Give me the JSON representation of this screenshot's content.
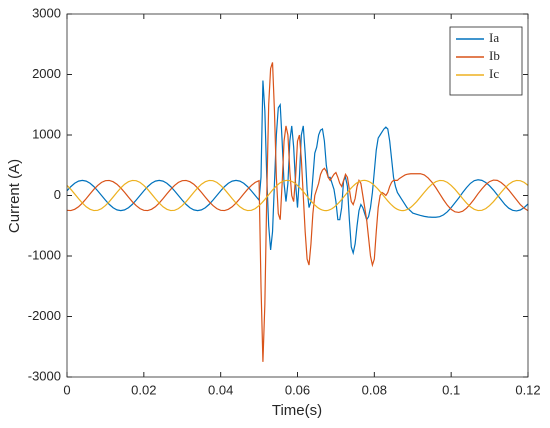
{
  "chart_data": {
    "type": "line",
    "x_label": "Time(s)",
    "y_label": "Current (A)",
    "xlim": [
      0,
      0.12
    ],
    "xticks": [
      0,
      0.02,
      0.04,
      0.06,
      0.08,
      0.1,
      0.12
    ],
    "ylim": [
      -3000,
      3000
    ],
    "yticks": [
      -3000,
      -2000,
      -1000,
      0,
      1000,
      2000,
      3000
    ],
    "legend": "top-right",
    "x": [
      0,
      0.001,
      0.002,
      0.003,
      0.004,
      0.005,
      0.006,
      0.007,
      0.008,
      0.009,
      0.01,
      0.011,
      0.012,
      0.013,
      0.014,
      0.015,
      0.016,
      0.017,
      0.018,
      0.019,
      0.02,
      0.021,
      0.022,
      0.023,
      0.024,
      0.025,
      0.026,
      0.027,
      0.028,
      0.029,
      0.03,
      0.031,
      0.032,
      0.033,
      0.034,
      0.035,
      0.036,
      0.037,
      0.038,
      0.039,
      0.04,
      0.041,
      0.042,
      0.043,
      0.044,
      0.045,
      0.046,
      0.047,
      0.048,
      0.049,
      0.05,
      0.0505,
      0.051,
      0.0515,
      0.052,
      0.0525,
      0.053,
      0.0535,
      0.054,
      0.0545,
      0.055,
      0.0555,
      0.056,
      0.0565,
      0.057,
      0.0575,
      0.058,
      0.0585,
      0.059,
      0.0595,
      0.06,
      0.0605,
      0.061,
      0.0615,
      0.062,
      0.0625,
      0.063,
      0.0635,
      0.064,
      0.0645,
      0.065,
      0.0655,
      0.066,
      0.0665,
      0.067,
      0.0675,
      0.068,
      0.0685,
      0.069,
      0.0695,
      0.07,
      0.0705,
      0.071,
      0.0715,
      0.072,
      0.0725,
      0.073,
      0.0735,
      0.074,
      0.0745,
      0.075,
      0.0755,
      0.076,
      0.0765,
      0.077,
      0.0775,
      0.078,
      0.0785,
      0.079,
      0.0795,
      0.08,
      0.0805,
      0.081,
      0.0815,
      0.082,
      0.0825,
      0.083,
      0.0835,
      0.084,
      0.0845,
      0.085,
      0.0855,
      0.086,
      0.0865,
      0.087,
      0.0875,
      0.088,
      0.0885,
      0.089,
      0.0895,
      0.09,
      0.091,
      0.092,
      0.093,
      0.094,
      0.095,
      0.096,
      0.097,
      0.098,
      0.099,
      0.1,
      0.101,
      0.102,
      0.103,
      0.104,
      0.105,
      0.106,
      0.107,
      0.108,
      0.109,
      0.11,
      0.111,
      0.112,
      0.113,
      0.114,
      0.115,
      0.116,
      0.117,
      0.118,
      0.119,
      0.12
    ],
    "series": [
      {
        "name": "Ia",
        "color": "#0072bd",
        "values": [
          77,
          147,
          202,
          238,
          250,
          238,
          202,
          147,
          77,
          0,
          -77,
          -147,
          -202,
          -238,
          -250,
          -238,
          -202,
          -147,
          -77,
          0,
          77,
          147,
          202,
          238,
          250,
          238,
          202,
          147,
          77,
          0,
          -77,
          -147,
          -202,
          -238,
          -250,
          -238,
          -202,
          -147,
          -77,
          0,
          77,
          147,
          202,
          238,
          250,
          238,
          202,
          147,
          77,
          0,
          -77,
          300,
          1900,
          1400,
          300,
          -500,
          -900,
          -600,
          200,
          1000,
          1450,
          1500,
          900,
          200,
          -100,
          200,
          900,
          1150,
          800,
          200,
          -200,
          300,
          1000,
          1150,
          700,
          100,
          -200,
          -100,
          300,
          700,
          800,
          1000,
          1080,
          1100,
          900,
          500,
          300,
          300,
          200,
          100,
          -100,
          -400,
          -400,
          -200,
          250,
          300,
          150,
          -400,
          -850,
          -950,
          -800,
          -500,
          -250,
          -150,
          -200,
          -300,
          -400,
          -350,
          -200,
          50,
          400,
          750,
          950,
          1000,
          1050,
          1100,
          1130,
          1100,
          900,
          600,
          300,
          150,
          50,
          0,
          -50,
          -100,
          -150,
          -200,
          -230,
          -260,
          -290,
          -310,
          -330,
          -345,
          -355,
          -360,
          -360,
          -350,
          -320,
          -270,
          -200,
          -120,
          -40,
          50,
          130,
          200,
          245,
          260,
          250,
          215,
          160,
          90,
          10,
          -70,
          -150,
          -210,
          -245,
          -255,
          -240,
          -200,
          -140
        ]
      },
      {
        "name": "Ib",
        "color": "#d95319",
        "values": [
          -245,
          -249,
          -228,
          -186,
          -125,
          -52,
          26,
          102,
          167,
          217,
          245,
          249,
          228,
          186,
          125,
          52,
          -26,
          -102,
          -167,
          -217,
          -245,
          -249,
          -228,
          -186,
          -125,
          -52,
          26,
          102,
          167,
          217,
          245,
          249,
          228,
          186,
          125,
          52,
          -26,
          -102,
          -167,
          -217,
          -245,
          -249,
          -228,
          -186,
          -125,
          -52,
          26,
          102,
          167,
          217,
          245,
          -1500,
          -2750,
          -1800,
          0,
          1500,
          2100,
          2200,
          1400,
          300,
          -300,
          -400,
          200,
          900,
          1150,
          1000,
          400,
          0,
          -100,
          300,
          900,
          1000,
          600,
          0,
          -600,
          -1050,
          -1150,
          -800,
          -300,
          0,
          100,
          200,
          350,
          420,
          450,
          400,
          300,
          250,
          300,
          350,
          380,
          300,
          200,
          150,
          250,
          350,
          300,
          100,
          -100,
          -150,
          -50,
          150,
          250,
          200,
          0,
          -200,
          -400,
          -700,
          -1000,
          -1150,
          -1050,
          -600,
          -200,
          0,
          50,
          30,
          0,
          50,
          150,
          220,
          250,
          250,
          250,
          280,
          300,
          320,
          340,
          350,
          355,
          360,
          360,
          360,
          360,
          340,
          290,
          220,
          130,
          30,
          -70,
          -160,
          -230,
          -270,
          -280,
          -260,
          -210,
          -140,
          -60,
          30,
          110,
          180,
          230,
          255,
          250,
          215,
          160,
          90,
          10,
          -70,
          -150,
          -210,
          -250
        ]
      },
      {
        "name": "Ic",
        "color": "#edb120",
        "values": [
          167,
          102,
          26,
          -52,
          -125,
          -186,
          -228,
          -249,
          -245,
          -217,
          -167,
          -102,
          -26,
          52,
          125,
          186,
          228,
          249,
          245,
          217,
          167,
          102,
          26,
          -52,
          -125,
          -186,
          -228,
          -249,
          -245,
          -217,
          -167,
          -102,
          -26,
          52,
          125,
          186,
          228,
          249,
          245,
          217,
          167,
          102,
          26,
          -52,
          -125,
          -186,
          -228,
          -249,
          -245,
          -217,
          -167,
          -136,
          -102,
          -65,
          -26,
          13,
          52,
          90,
          125,
          157,
          186,
          210,
          228,
          241,
          249,
          250,
          245,
          233,
          217,
          194,
          167,
          136,
          102,
          65,
          26,
          -13,
          -52,
          -90,
          -125,
          -157,
          -186,
          -210,
          -228,
          -241,
          -249,
          -250,
          -245,
          -233,
          -217,
          -194,
          -167,
          -136,
          -102,
          -65,
          -26,
          13,
          52,
          90,
          125,
          157,
          186,
          210,
          228,
          241,
          249,
          250,
          245,
          233,
          217,
          194,
          167,
          136,
          102,
          65,
          26,
          -13,
          -52,
          -90,
          -125,
          -157,
          -186,
          -210,
          -228,
          -241,
          -249,
          -250,
          -245,
          -233,
          -217,
          -194,
          -167,
          -102,
          -26,
          52,
          125,
          186,
          228,
          249,
          245,
          217,
          167,
          102,
          26,
          -52,
          -125,
          -186,
          -228,
          -249,
          -245,
          -217,
          -167,
          -102,
          -26,
          52,
          125,
          186,
          228,
          249,
          245,
          217,
          167
        ]
      }
    ]
  }
}
